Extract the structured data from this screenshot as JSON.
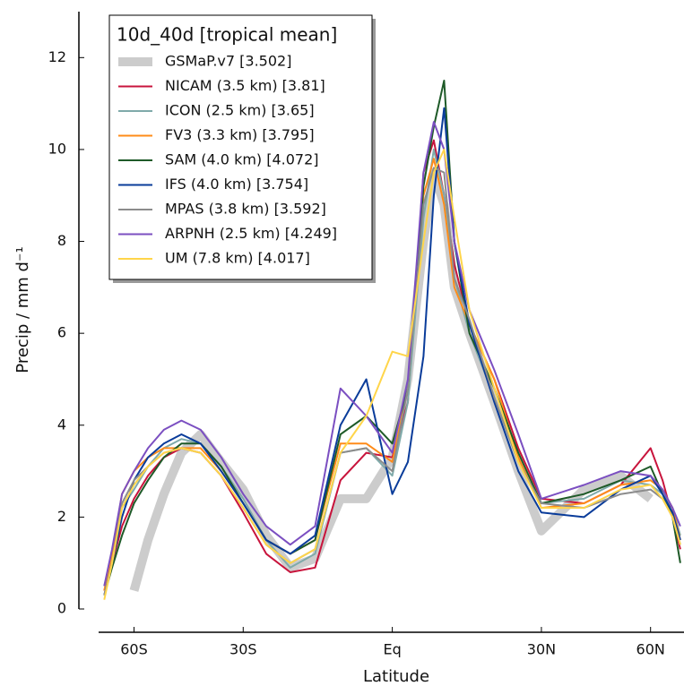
{
  "chart_data": {
    "type": "line",
    "xscale": "sine",
    "xlabel": "Latitude",
    "ylabel": "Precip / mm d⁻¹",
    "legend_title": "10d_40d [tropical mean]",
    "legend_position": "upper left",
    "xlim": [
      -80,
      78
    ],
    "ylim": [
      0,
      13
    ],
    "xticks": [
      {
        "value": -60,
        "label": "60S"
      },
      {
        "value": -30,
        "label": "30S"
      },
      {
        "value": 0,
        "label": "Eq"
      },
      {
        "value": 30,
        "label": "30N"
      },
      {
        "value": 60,
        "label": "60N"
      }
    ],
    "yticks": [
      0,
      2,
      4,
      6,
      8,
      10,
      12
    ],
    "x": [
      -75,
      -70,
      -65,
      -60,
      -55,
      -50,
      -45,
      -40,
      -35,
      -30,
      -25,
      -20,
      -15,
      -10,
      -5,
      0,
      3,
      6,
      8,
      10,
      12,
      15,
      20,
      25,
      30,
      40,
      50,
      60,
      65,
      70,
      75
    ],
    "series": [
      {
        "name": "GSMaP.v7 [3.502]",
        "color": "#cccccc",
        "width": 10,
        "values": [
          null,
          null,
          null,
          0.4,
          1.5,
          2.5,
          3.4,
          3.8,
          3.2,
          2.6,
          1.6,
          0.9,
          1.1,
          2.4,
          2.4,
          3.3,
          5.0,
          8.0,
          9.5,
          8.8,
          7.0,
          6.0,
          4.5,
          3.0,
          1.7,
          2.6,
          2.9,
          2.4,
          null,
          null,
          null
        ]
      },
      {
        "name": "NICAM (3.5 km) [3.81]",
        "color": "#c8143c",
        "width": 2,
        "values": [
          0.4,
          1.0,
          1.8,
          2.4,
          2.9,
          3.3,
          3.5,
          3.4,
          2.9,
          2.1,
          1.2,
          0.8,
          0.9,
          2.8,
          3.4,
          3.3,
          4.5,
          9.5,
          10.2,
          9.0,
          7.5,
          6.2,
          5.0,
          3.5,
          2.4,
          2.3,
          2.7,
          3.5,
          2.8,
          2.0,
          1.3
        ]
      },
      {
        "name": "ICON (2.5 km) [3.65]",
        "color": "#7faaaa",
        "width": 2,
        "values": [
          0.5,
          1.2,
          2.2,
          2.6,
          3.1,
          3.5,
          3.7,
          3.6,
          3.1,
          2.4,
          1.5,
          0.9,
          1.2,
          3.4,
          3.5,
          2.9,
          4.5,
          8.5,
          10.0,
          9.0,
          7.2,
          6.0,
          4.6,
          3.2,
          2.3,
          2.4,
          2.8,
          2.7,
          2.5,
          2.2,
          1.6
        ]
      },
      {
        "name": "FV3 (3.3 km) [3.795]",
        "color": "#ff8c1a",
        "width": 2,
        "values": [
          0.4,
          1.2,
          2.5,
          3.0,
          3.3,
          3.5,
          3.5,
          3.5,
          3.0,
          2.3,
          1.5,
          1.2,
          1.5,
          3.6,
          3.6,
          3.2,
          4.8,
          9.0,
          9.8,
          8.8,
          7.0,
          6.2,
          5.0,
          3.3,
          2.2,
          2.3,
          2.7,
          2.8,
          2.6,
          2.2,
          1.5
        ]
      },
      {
        "name": "SAM (4.0 km) [4.072]",
        "color": "#1e5a28",
        "width": 2,
        "values": [
          0.3,
          0.9,
          1.6,
          2.3,
          2.8,
          3.3,
          3.6,
          3.6,
          3.1,
          2.3,
          1.5,
          1.2,
          1.5,
          3.8,
          4.2,
          3.6,
          4.8,
          9.2,
          10.5,
          11.5,
          8.0,
          6.0,
          4.8,
          3.4,
          2.3,
          2.5,
          2.8,
          3.1,
          2.5,
          2.0,
          1.0
        ]
      },
      {
        "name": "IFS (4.0 km) [3.754]",
        "color": "#0a3c9a",
        "width": 2,
        "values": [
          0.3,
          1.0,
          2.0,
          2.8,
          3.3,
          3.6,
          3.8,
          3.6,
          3.0,
          2.3,
          1.5,
          1.2,
          1.6,
          4.0,
          5.0,
          2.5,
          3.2,
          5.5,
          9.0,
          10.9,
          8.0,
          6.2,
          4.5,
          3.0,
          2.1,
          2.0,
          2.6,
          2.9,
          2.5,
          2.1,
          1.5
        ]
      },
      {
        "name": "MPAS (3.8 km) [3.592]",
        "color": "#8c8c8c",
        "width": 2,
        "values": [
          0.3,
          1.0,
          2.3,
          2.8,
          3.1,
          3.4,
          3.5,
          3.4,
          2.9,
          2.2,
          1.4,
          1.0,
          1.3,
          3.4,
          3.5,
          3.0,
          4.8,
          8.8,
          9.6,
          9.5,
          7.2,
          6.3,
          4.6,
          3.2,
          2.3,
          2.2,
          2.5,
          2.6,
          2.4,
          2.0,
          1.4
        ]
      },
      {
        "name": "ARPNH (2.5 km) [4.249]",
        "color": "#7b4fc1",
        "width": 2,
        "values": [
          0.5,
          1.3,
          2.5,
          3.0,
          3.5,
          3.9,
          4.1,
          3.9,
          3.3,
          2.5,
          1.8,
          1.4,
          1.8,
          4.8,
          4.2,
          3.4,
          5.0,
          9.5,
          10.6,
          10.0,
          8.0,
          6.5,
          5.2,
          3.8,
          2.4,
          2.7,
          3.0,
          2.9,
          2.6,
          2.2,
          1.8
        ]
      },
      {
        "name": "UM (7.8 km) [4.017]",
        "color": "#ffd54a",
        "width": 2,
        "values": [
          0.2,
          1.0,
          2.2,
          2.7,
          3.1,
          3.4,
          3.5,
          3.4,
          2.9,
          2.2,
          1.4,
          1.0,
          1.3,
          3.4,
          4.2,
          5.6,
          5.5,
          8.0,
          9.5,
          10.0,
          8.5,
          6.5,
          4.8,
          3.2,
          2.2,
          2.2,
          2.6,
          2.7,
          2.4,
          2.0,
          1.4
        ]
      }
    ]
  }
}
